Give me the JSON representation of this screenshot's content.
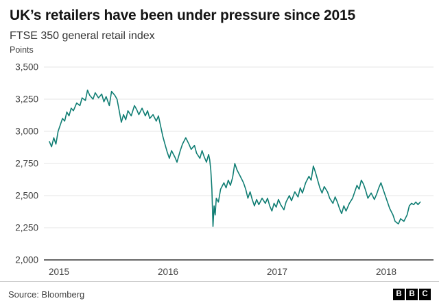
{
  "header": {
    "title": "UK’s retailers have been under pressure since 2015",
    "subtitle": "FTSE 350 general retail index"
  },
  "footer": {
    "source": "Source: Bloomberg",
    "logo_letters": [
      "B",
      "B",
      "C"
    ]
  },
  "chart_data": {
    "type": "line",
    "title": "UK’s retailers have been under pressure since 2015",
    "subtitle": "FTSE 350 general retail index",
    "ylabel": "Points",
    "xlabel": "",
    "ylim": [
      2000,
      3500
    ],
    "xlim": [
      2015,
      2018.45
    ],
    "grid": true,
    "legend": "none",
    "yticks": [
      3500,
      3250,
      3000,
      2750,
      2500,
      2250,
      2000
    ],
    "ytick_labels": [
      "3,500",
      "3,250",
      "3,000",
      "2,750",
      "2,500",
      "2,250",
      "2,000"
    ],
    "xticks": [
      2015,
      2016,
      2017,
      2018
    ],
    "line_color": "#0f7d73",
    "grid_color": "#e6e6e6",
    "axis_color": "#333333",
    "tick_color": "#404040",
    "series": [
      {
        "name": "FTSE 350 general retail index",
        "x": [
          2015.0,
          2015.02,
          2015.04,
          2015.06,
          2015.08,
          2015.1,
          2015.12,
          2015.14,
          2015.16,
          2015.18,
          2015.2,
          2015.22,
          2015.25,
          2015.28,
          2015.3,
          2015.33,
          2015.35,
          2015.37,
          2015.4,
          2015.42,
          2015.45,
          2015.48,
          2015.5,
          2015.52,
          2015.55,
          2015.57,
          2015.6,
          2015.62,
          2015.64,
          2015.66,
          2015.68,
          2015.7,
          2015.72,
          2015.75,
          2015.78,
          2015.8,
          2015.82,
          2015.85,
          2015.88,
          2015.9,
          2015.92,
          2015.95,
          2015.98,
          2016.0,
          2016.02,
          2016.04,
          2016.06,
          2016.08,
          2016.1,
          2016.12,
          2016.15,
          2016.17,
          2016.2,
          2016.22,
          2016.25,
          2016.28,
          2016.3,
          2016.33,
          2016.35,
          2016.38,
          2016.4,
          2016.42,
          2016.44,
          2016.46,
          2016.47,
          2016.48,
          2016.49,
          2016.5,
          2016.51,
          2016.52,
          2016.53,
          2016.55,
          2016.57,
          2016.6,
          2016.62,
          2016.64,
          2016.66,
          2016.68,
          2016.7,
          2016.72,
          2016.75,
          2016.78,
          2016.8,
          2016.82,
          2016.84,
          2016.86,
          2016.88,
          2016.9,
          2016.92,
          2016.95,
          2016.98,
          2017.0,
          2017.02,
          2017.04,
          2017.06,
          2017.08,
          2017.1,
          2017.12,
          2017.15,
          2017.17,
          2017.2,
          2017.22,
          2017.25,
          2017.28,
          2017.3,
          2017.32,
          2017.35,
          2017.38,
          2017.4,
          2017.42,
          2017.44,
          2017.46,
          2017.48,
          2017.5,
          2017.52,
          2017.55,
          2017.57,
          2017.6,
          2017.62,
          2017.64,
          2017.66,
          2017.68,
          2017.7,
          2017.72,
          2017.75,
          2017.78,
          2017.8,
          2017.82,
          2017.84,
          2017.86,
          2017.88,
          2017.9,
          2017.92,
          2017.95,
          2017.98,
          2018.0,
          2018.02,
          2018.04,
          2018.06,
          2018.08,
          2018.1,
          2018.12,
          2018.15,
          2018.17,
          2018.2,
          2018.22,
          2018.25,
          2018.28,
          2018.3,
          2018.32,
          2018.34,
          2018.36,
          2018.38,
          2018.4
        ],
        "y": [
          2920,
          2880,
          2950,
          2900,
          3000,
          3050,
          3100,
          3080,
          3150,
          3120,
          3180,
          3160,
          3220,
          3200,
          3260,
          3240,
          3320,
          3280,
          3250,
          3300,
          3260,
          3290,
          3230,
          3270,
          3200,
          3310,
          3280,
          3250,
          3160,
          3070,
          3130,
          3090,
          3160,
          3120,
          3200,
          3170,
          3130,
          3180,
          3120,
          3160,
          3100,
          3130,
          3080,
          3120,
          3040,
          2960,
          2900,
          2840,
          2790,
          2850,
          2800,
          2760,
          2850,
          2900,
          2950,
          2900,
          2860,
          2890,
          2830,
          2790,
          2850,
          2800,
          2760,
          2820,
          2780,
          2700,
          2550,
          2260,
          2420,
          2350,
          2480,
          2450,
          2550,
          2600,
          2560,
          2620,
          2580,
          2640,
          2750,
          2700,
          2650,
          2600,
          2550,
          2480,
          2530,
          2470,
          2420,
          2470,
          2430,
          2480,
          2440,
          2480,
          2420,
          2380,
          2440,
          2410,
          2470,
          2430,
          2390,
          2450,
          2500,
          2460,
          2530,
          2490,
          2560,
          2520,
          2600,
          2650,
          2620,
          2730,
          2680,
          2620,
          2560,
          2520,
          2570,
          2530,
          2480,
          2440,
          2490,
          2450,
          2400,
          2360,
          2420,
          2380,
          2440,
          2480,
          2530,
          2580,
          2550,
          2620,
          2590,
          2540,
          2480,
          2520,
          2470,
          2510,
          2560,
          2600,
          2550,
          2500,
          2450,
          2400,
          2350,
          2300,
          2280,
          2320,
          2300,
          2350,
          2420,
          2440,
          2430,
          2450,
          2430,
          2450
        ]
      }
    ]
  }
}
